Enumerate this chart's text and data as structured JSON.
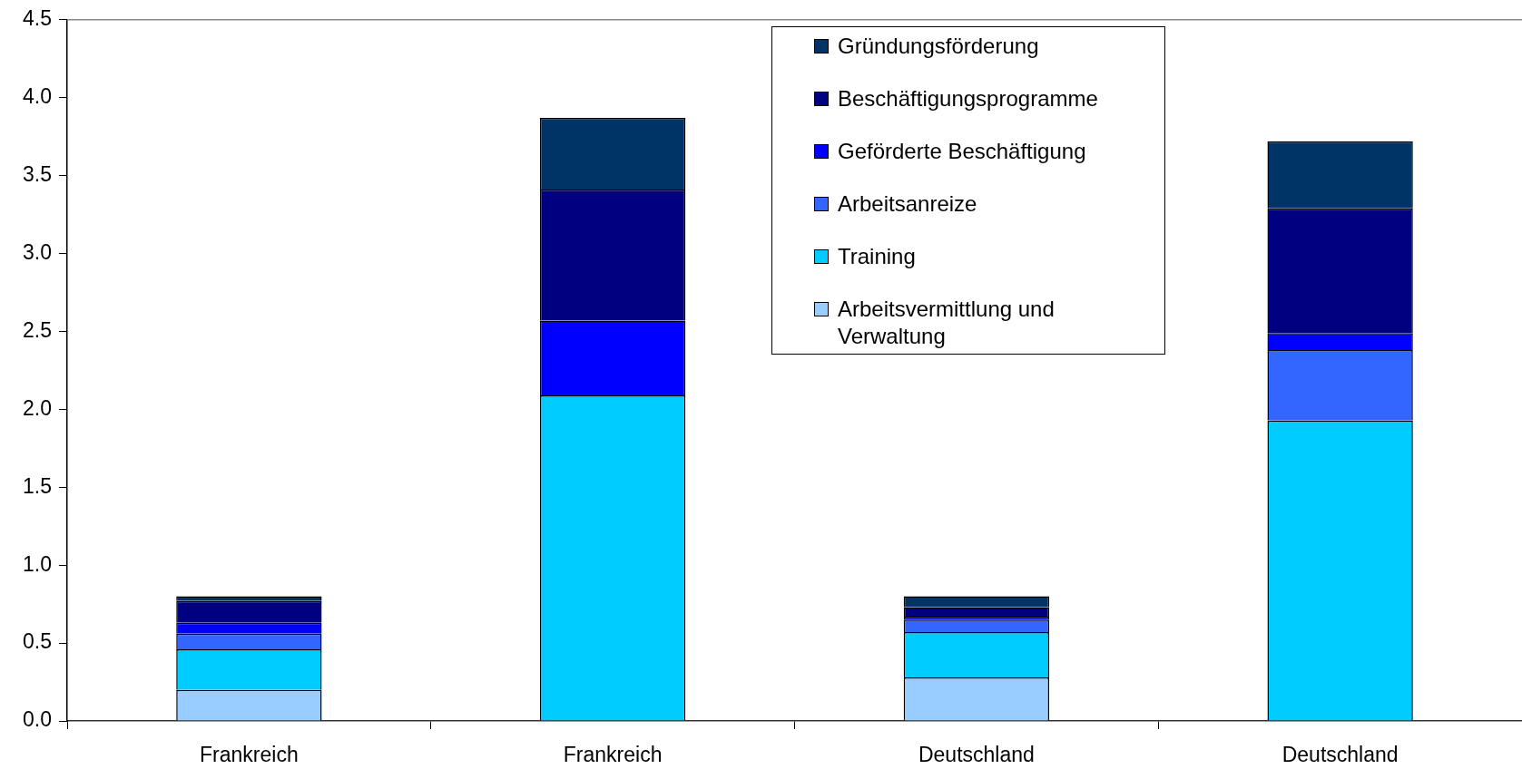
{
  "chart_data": {
    "type": "bar",
    "categories": [
      "Frankreich",
      "Frankreich",
      "Deutschland",
      "Deutschland"
    ],
    "series": [
      {
        "name": "Arbeitsvermittlung und Verwaltung",
        "color": "#99ccff",
        "values": [
          0.2,
          null,
          0.28,
          null
        ]
      },
      {
        "name": "Training",
        "color": "#00ccff",
        "values": [
          0.26,
          2.09,
          0.29,
          1.93
        ]
      },
      {
        "name": "Arbeitsanreize",
        "color": "#3366ff",
        "values": [
          0.1,
          null,
          0.08,
          0.45
        ]
      },
      {
        "name": "Geförderte Beschäftigung",
        "color": "#0000ff",
        "values": [
          0.07,
          0.48,
          0.02,
          0.11
        ]
      },
      {
        "name": "Beschäftigungsprogramme",
        "color": "#000080",
        "values": [
          0.14,
          0.84,
          0.06,
          0.8
        ]
      },
      {
        "name": "Gründungsförderung",
        "color": "#003366",
        "values": [
          0.03,
          0.46,
          0.07,
          0.43
        ]
      }
    ],
    "stacked": true,
    "ylim": [
      0,
      4.5
    ],
    "yticks": [
      {
        "value": 0,
        "label": "0.0"
      },
      0.5,
      {
        "value": 1,
        "label": "1.0"
      },
      1.5,
      {
        "value": 2,
        "label": "2.0"
      },
      2.5,
      {
        "value": 3,
        "label": "3.0"
      },
      3.5,
      {
        "value": 4,
        "label": "4.0"
      },
      4.5
    ],
    "grid": false,
    "legend": "top"
  }
}
